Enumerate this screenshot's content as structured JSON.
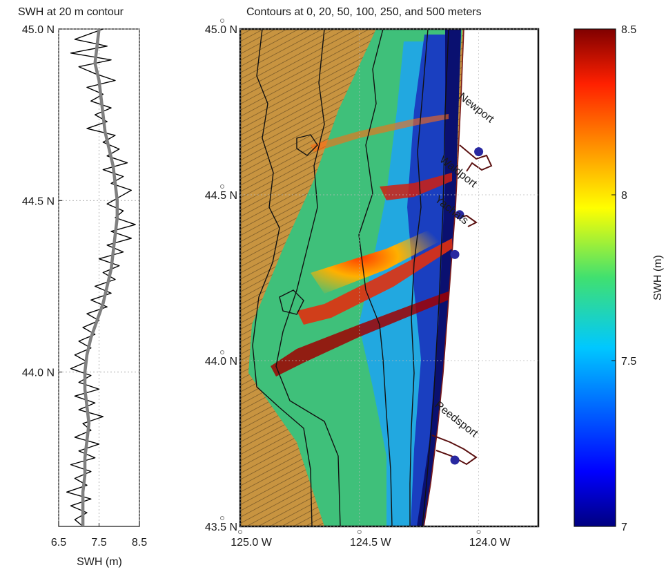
{
  "chart_data": [
    {
      "type": "line",
      "title": "SWH at 20 m contour",
      "xlabel": "SWH (m)",
      "ylabel": "",
      "xlim": [
        6.5,
        8.5
      ],
      "ylim": [
        43.55,
        45.0
      ],
      "x_ticks": [
        6.5,
        7.5,
        8.5
      ],
      "x_tick_labels": [
        "6.5",
        "7.5",
        "8.5"
      ],
      "y_ticks": [
        44.0,
        44.5,
        45.0
      ],
      "y_tick_labels": [
        "44.0 N",
        "44.5 N",
        "45.0 N"
      ],
      "grid": true,
      "series": [
        {
          "color": "#000000",
          "style": "raw",
          "lat": [
            45.0,
            44.97,
            44.95,
            44.93,
            44.91,
            44.89,
            44.87,
            44.85,
            44.83,
            44.81,
            44.79,
            44.77,
            44.75,
            44.73,
            44.71,
            44.69,
            44.67,
            44.65,
            44.63,
            44.61,
            44.59,
            44.57,
            44.55,
            44.53,
            44.51,
            44.49,
            44.47,
            44.45,
            44.43,
            44.41,
            44.39,
            44.37,
            44.35,
            44.33,
            44.31,
            44.29,
            44.27,
            44.25,
            44.23,
            44.21,
            44.19,
            44.17,
            44.15,
            44.13,
            44.11,
            44.09,
            44.07,
            44.05,
            44.03,
            44.01,
            43.99,
            43.97,
            43.95,
            43.93,
            43.91,
            43.89,
            43.87,
            43.85,
            43.83,
            43.81,
            43.79,
            43.77,
            43.75,
            43.73,
            43.71,
            43.69,
            43.67,
            43.65,
            43.63,
            43.61,
            43.59,
            43.57,
            43.55
          ],
          "swh": [
            7.6,
            6.9,
            7.7,
            6.8,
            7.8,
            7.0,
            7.4,
            7.9,
            7.2,
            7.6,
            7.3,
            7.8,
            7.4,
            7.7,
            7.2,
            7.9,
            7.6,
            8.0,
            7.7,
            8.2,
            7.6,
            8.1,
            7.8,
            8.3,
            8.0,
            7.7,
            8.1,
            7.9,
            8.4,
            7.8,
            8.3,
            7.7,
            8.1,
            7.5,
            8.0,
            7.6,
            7.9,
            7.4,
            7.8,
            7.3,
            7.7,
            7.2,
            7.5,
            7.1,
            7.4,
            7.0,
            7.3,
            6.9,
            7.2,
            6.8,
            7.3,
            7.0,
            7.5,
            6.9,
            7.4,
            7.0,
            7.6,
            7.1,
            7.3,
            6.9,
            7.5,
            7.0,
            7.4,
            6.8,
            7.3,
            6.9,
            7.2,
            6.7,
            7.3,
            6.8,
            7.2,
            6.9,
            7.1
          ]
        },
        {
          "color": "#808080",
          "style": "smoothed",
          "lat": [
            45.0,
            44.95,
            44.9,
            44.85,
            44.8,
            44.75,
            44.7,
            44.65,
            44.6,
            44.55,
            44.5,
            44.45,
            44.4,
            44.35,
            44.3,
            44.25,
            44.2,
            44.15,
            44.1,
            44.05,
            44.0,
            43.95,
            43.9,
            43.85,
            43.8,
            43.75,
            43.7,
            43.65,
            43.6,
            43.55
          ],
          "swh": [
            7.5,
            7.45,
            7.4,
            7.5,
            7.55,
            7.6,
            7.65,
            7.75,
            7.85,
            7.9,
            7.95,
            7.95,
            7.9,
            7.85,
            7.8,
            7.7,
            7.6,
            7.45,
            7.3,
            7.2,
            7.15,
            7.15,
            7.2,
            7.25,
            7.2,
            7.15,
            7.15,
            7.1,
            7.1,
            7.1
          ]
        }
      ]
    },
    {
      "type": "heatmap",
      "title": "Contours at 0, 20, 50, 100, 250, and 500 meters",
      "xlabel": "",
      "ylabel": "",
      "xlim": [
        -125.0,
        -123.75
      ],
      "ylim": [
        43.5,
        45.0
      ],
      "x_ticks": [
        -125.0,
        -124.5,
        -124.0
      ],
      "x_tick_labels": [
        "125.0  W",
        "124.5  W",
        "124.0  W"
      ],
      "y_ticks": [
        43.5,
        44.0,
        44.5,
        45.0
      ],
      "y_tick_labels": [
        "43.5  N",
        "44.0  N",
        "44.5  N",
        "45.0  N"
      ],
      "grid": true,
      "color_range_m": [
        7.0,
        8.5
      ],
      "contours_m": [
        0,
        20,
        50,
        100,
        250,
        500
      ],
      "towns": [
        {
          "name": "Newport",
          "lon": -124.0,
          "lat": 44.63
        },
        {
          "name": "Waldport",
          "lon": -124.08,
          "lat": 44.44
        },
        {
          "name": "Yachats",
          "lon": -124.1,
          "lat": 44.32
        },
        {
          "name": "Reedsport",
          "lon": -124.1,
          "lat": 43.7
        }
      ]
    },
    {
      "type": "colorbar",
      "label": "SWH (m)",
      "range": [
        7.0,
        8.5
      ],
      "ticks": [
        7.0,
        7.5,
        8.0,
        8.5
      ],
      "tick_labels": [
        "7",
        "7.5",
        "8",
        "8.5"
      ],
      "colormap": "jet"
    }
  ]
}
